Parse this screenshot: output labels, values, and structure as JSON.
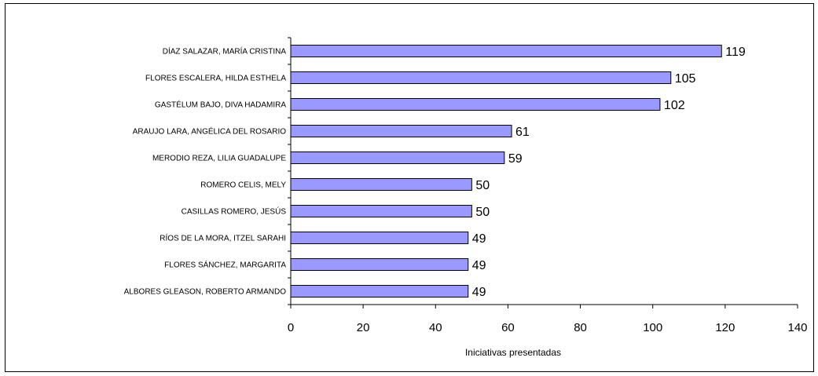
{
  "chart_data": {
    "type": "bar",
    "orientation": "horizontal",
    "categories": [
      "DÍAZ SALAZAR, MARÍA CRISTINA",
      "FLORES ESCALERA, HILDA ESTHELA",
      "GASTÉLUM BAJO, DIVA HADAMIRA",
      "ARAUJO LARA, ANGÉLICA DEL ROSARIO",
      "MERODIO REZA, LILIA GUADALUPE",
      "ROMERO CELIS, MELY",
      "CASILLAS ROMERO, JESÚS",
      "RÍOS DE LA MORA, ITZEL SARAHI",
      "FLORES SÁNCHEZ, MARGARITA",
      "ALBORES GLEASON, ROBERTO ARMANDO"
    ],
    "values": [
      119,
      105,
      102,
      61,
      59,
      50,
      50,
      49,
      49,
      49
    ],
    "value_labels": [
      "119",
      "105",
      "102",
      "61",
      "59",
      "50",
      "50",
      "49",
      "49",
      "49"
    ],
    "xlabel": "Iniciativas presentadas",
    "ylabel": "",
    "xlim": [
      0,
      140
    ],
    "xticks": [
      "0",
      "20",
      "40",
      "60",
      "80",
      "100",
      "120",
      "140"
    ],
    "grid": false,
    "legend": "none",
    "colors": {
      "bar_fill": "#9999ff",
      "bar_stroke": "#000000"
    }
  }
}
